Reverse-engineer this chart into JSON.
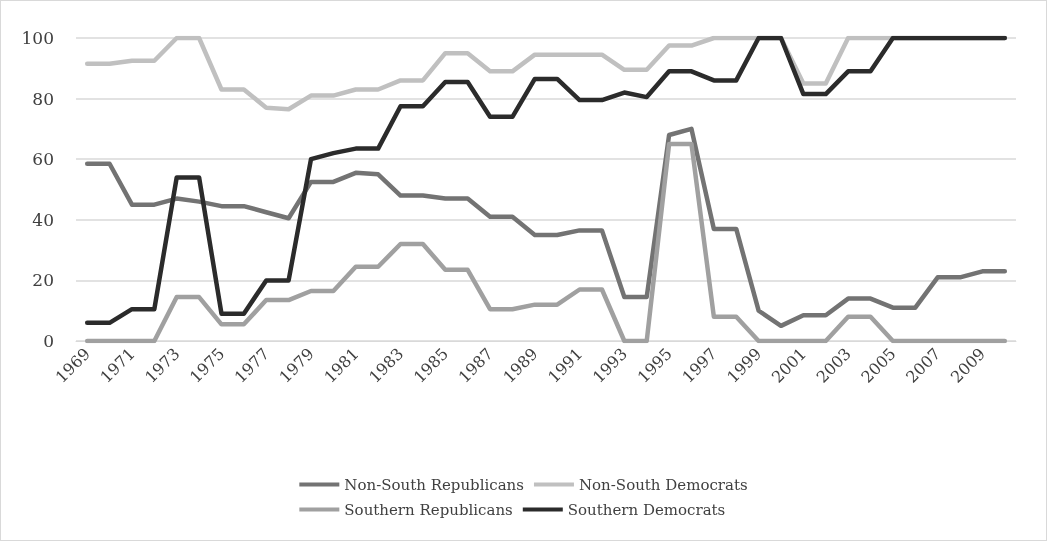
{
  "chart_data": {
    "type": "line",
    "categories": [
      "1969",
      null,
      "1971",
      null,
      "1973",
      null,
      "1975",
      null,
      "1977",
      null,
      "1979",
      null,
      "1981",
      null,
      "1983",
      null,
      "1985",
      null,
      "1987",
      null,
      "1989",
      null,
      "1991",
      null,
      "1993",
      null,
      "1995",
      null,
      "1997",
      null,
      "1999",
      null,
      "2001",
      null,
      "2003",
      null,
      "2005",
      null,
      "2007",
      null,
      "2009",
      null
    ],
    "series": [
      {
        "name": "Non-South Republicans",
        "color": "#737373",
        "values": [
          58.5,
          58.5,
          45,
          45,
          47,
          46,
          44.5,
          44.5,
          42.5,
          40.5,
          52.5,
          52.5,
          55.5,
          55,
          48,
          48,
          47,
          47,
          41,
          41,
          35,
          35,
          36.5,
          36.5,
          14.5,
          14.5,
          68,
          70,
          37,
          37,
          10,
          5,
          8.5,
          8.5,
          14,
          14,
          11,
          11,
          21,
          21,
          23,
          23
        ]
      },
      {
        "name": "Non-South Democrats",
        "color": "#c0c0c0",
        "values": [
          91.5,
          91.5,
          92.5,
          92.5,
          100,
          100,
          83,
          83,
          77,
          76.5,
          81,
          81,
          83,
          83,
          86,
          86,
          95,
          95,
          89,
          89,
          94.5,
          94.5,
          94.5,
          94.5,
          89.5,
          89.5,
          97.5,
          97.5,
          100,
          100,
          100,
          100,
          85,
          85,
          100,
          100,
          100,
          100,
          100,
          100,
          100,
          100
        ]
      },
      {
        "name": "Southern Republicans",
        "color": "#a0a0a0",
        "values": [
          0,
          0,
          0,
          0,
          14.5,
          14.5,
          5.5,
          5.5,
          13.5,
          13.5,
          16.5,
          16.5,
          24.5,
          24.5,
          32,
          32,
          23.5,
          23.5,
          10.5,
          10.5,
          12,
          12,
          17,
          17,
          0,
          0,
          65,
          65,
          8,
          8,
          0,
          0,
          0,
          0,
          8,
          8,
          0,
          0,
          0,
          0,
          0,
          0
        ]
      },
      {
        "name": "Southern Democrats",
        "color": "#2b2b2b",
        "values": [
          6,
          6,
          10.5,
          10.5,
          54,
          54,
          9,
          9,
          20,
          20,
          60,
          62,
          63.5,
          63.5,
          77.5,
          77.5,
          85.5,
          85.5,
          74,
          74,
          86.5,
          86.5,
          79.5,
          79.5,
          82,
          80.5,
          89,
          89,
          86,
          86,
          100,
          100,
          81.5,
          81.5,
          89,
          89,
          100,
          100,
          100,
          100,
          100,
          100
        ]
      }
    ],
    "ylim": [
      0,
      100
    ],
    "yticks": [
      0,
      20,
      40,
      60,
      80,
      100
    ],
    "grid": "y",
    "legend": "bottom",
    "marker": "none",
    "line_style": "solid"
  }
}
